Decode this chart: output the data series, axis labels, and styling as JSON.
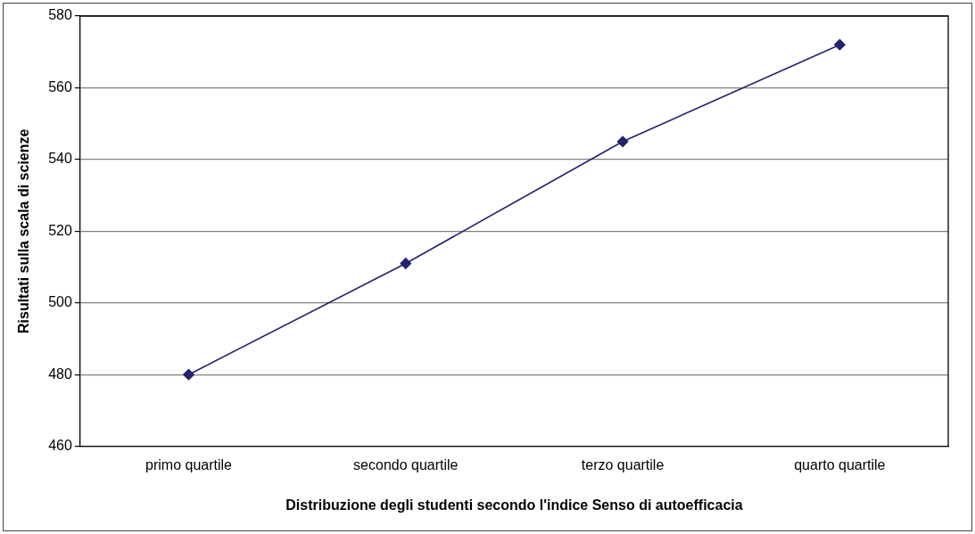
{
  "chart_data": {
    "type": "line",
    "xlabel": "Distribuzione degli studenti secondo l'indice Senso di autoefficacia",
    "ylabel": "Risultati sulla scala di scienze",
    "categories": [
      "primo quartile",
      "secondo quartile",
      "terzo quartile",
      "quarto quartile"
    ],
    "series": [
      {
        "color": "#23236e",
        "values": [
          480,
          511,
          545,
          572
        ]
      }
    ],
    "ylim": [
      460,
      580
    ],
    "yticks": [
      460,
      480,
      500,
      520,
      540,
      560,
      580
    ],
    "grid": "y",
    "legend": false,
    "marker": "diamond",
    "line_style": "solid"
  }
}
